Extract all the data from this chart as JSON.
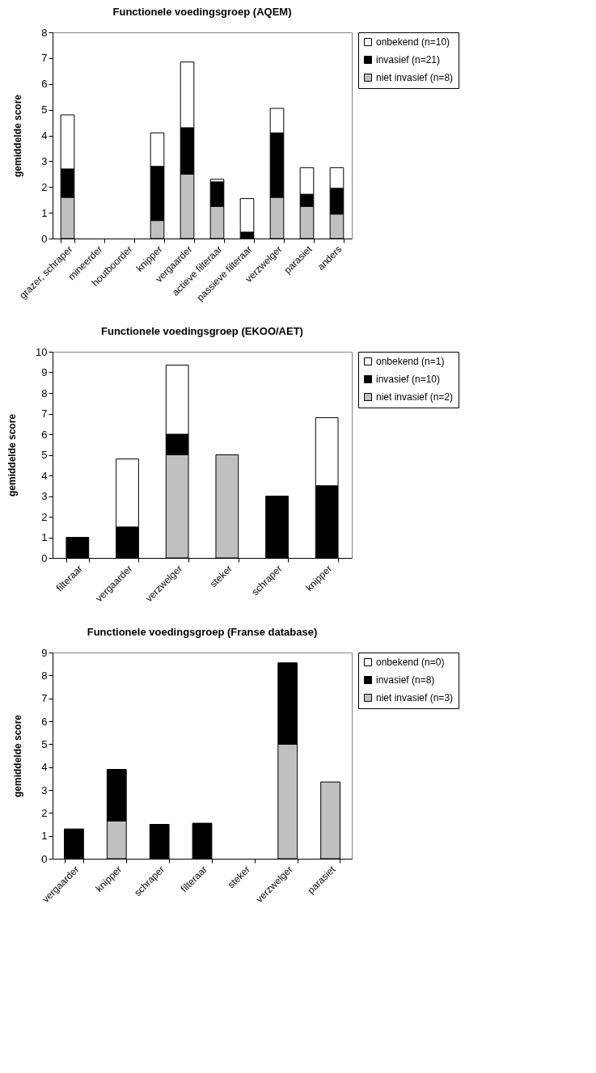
{
  "chart_data": [
    {
      "type": "bar",
      "title": "Functionele voedingsgroep (AQEM)",
      "ylabel": "gemiddelde score",
      "stacked": true,
      "legend": "right",
      "grid": false,
      "categories": [
        "grazer, schraper",
        "mineerder",
        "houtboorder",
        "knipper",
        "vergaarder",
        "actieve filteraar",
        "passieve filteraar",
        "verzwelger",
        "parasiet",
        "anders"
      ],
      "ylim": [
        0,
        8
      ],
      "yticks": [
        0,
        1,
        2,
        3,
        4,
        5,
        6,
        7,
        8
      ],
      "series": [
        {
          "name": "niet invasief (n=8)",
          "color": "#c0c0c0",
          "values": [
            1.6,
            null,
            null,
            0.7,
            2.5,
            1.25,
            null,
            1.6,
            1.25,
            0.95
          ]
        },
        {
          "name": "invasief (n=21)",
          "color": "#000000",
          "values": [
            1.1,
            null,
            null,
            2.1,
            1.8,
            0.95,
            0.25,
            2.5,
            0.47,
            1.0
          ]
        },
        {
          "name": "onbekend (n=10)",
          "color": "#ffffff",
          "values": [
            2.1,
            null,
            null,
            1.3,
            2.55,
            0.1,
            1.3,
            0.95,
            1.03,
            0.8
          ]
        }
      ]
    },
    {
      "type": "bar",
      "title": "Functionele voedingsgroep (EKOO/AET)",
      "ylabel": "gemiddelde score",
      "stacked": true,
      "legend": "right",
      "grid": false,
      "categories": [
        "filteraar",
        "vergaarder",
        "verzwelger",
        "steker",
        "schraper",
        "knipper"
      ],
      "ylim": [
        0,
        10
      ],
      "yticks": [
        0,
        1,
        2,
        3,
        4,
        5,
        6,
        7,
        8,
        9,
        10
      ],
      "series": [
        {
          "name": "niet invasief (n=2)",
          "color": "#c0c0c0",
          "values": [
            null,
            null,
            5,
            5,
            null,
            null
          ]
        },
        {
          "name": "invasief (n=10)",
          "color": "#000000",
          "values": [
            1,
            1.5,
            1,
            null,
            3,
            3.5
          ]
        },
        {
          "name": "onbekend (n=1)",
          "color": "#ffffff",
          "values": [
            null,
            3.3,
            3.35,
            null,
            null,
            3.3
          ]
        }
      ]
    },
    {
      "type": "bar",
      "title": "Functionele voedingsgroep (Franse database)",
      "ylabel": "gemiddelde score",
      "stacked": true,
      "legend": "right",
      "grid": false,
      "categories": [
        "vergaarder",
        "knipper",
        "schraper",
        "filteraar",
        "steker",
        "verzwelger",
        "parasiet"
      ],
      "ylim": [
        0,
        9
      ],
      "yticks": [
        0,
        1,
        2,
        3,
        4,
        5,
        6,
        7,
        8,
        9
      ],
      "series": [
        {
          "name": "niet invasief (n=3)",
          "color": "#c0c0c0",
          "values": [
            null,
            1.65,
            null,
            null,
            null,
            5,
            3.35
          ]
        },
        {
          "name": "invasief (n=8)",
          "color": "#000000",
          "values": [
            1.3,
            2.25,
            1.5,
            1.55,
            null,
            3.55,
            null
          ]
        },
        {
          "name": "onbekend (n=0)",
          "color": "#ffffff",
          "values": [
            null,
            null,
            null,
            null,
            null,
            null,
            null
          ]
        }
      ]
    }
  ]
}
